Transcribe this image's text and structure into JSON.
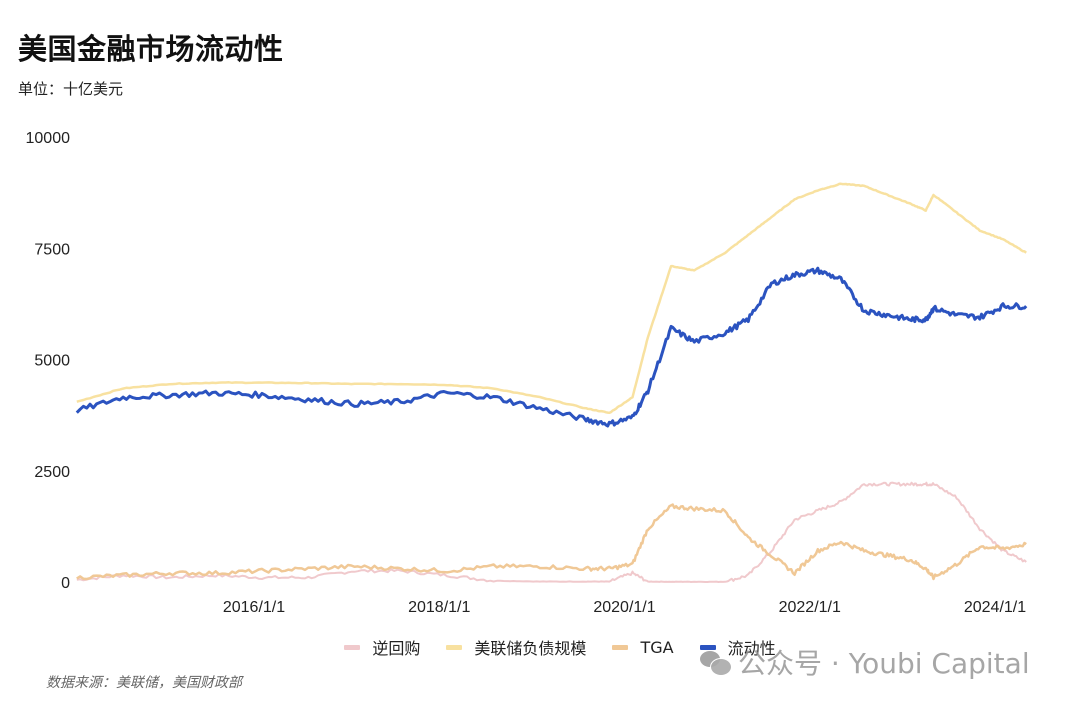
{
  "header": {
    "title": "美国金融市场流动性",
    "subtitle": "单位：十亿美元"
  },
  "legend": [
    {
      "label": "逆回购",
      "color": "#f0c9cc"
    },
    {
      "label": "美联储负债规模",
      "color": "#f8e1a0"
    },
    {
      "label": "TGA",
      "color": "#f0c896"
    },
    {
      "label": "流动性",
      "color": "#2b53c0"
    }
  ],
  "footer": {
    "source": "数据来源：美联储，美国财政部",
    "watermark": "公众号 · Youbi Capital"
  },
  "chart_data": {
    "type": "line",
    "title": "美国金融市场流动性",
    "subtitle": "单位：十亿美元",
    "xlabel": "",
    "ylabel": "",
    "ylim": [
      0,
      10000
    ],
    "yticks": [
      0,
      2500,
      5000,
      7500,
      10000
    ],
    "xticks": [
      "2016/1/1",
      "2018/1/1",
      "2020/1/1",
      "2022/1/1",
      "2024/1/1"
    ],
    "grid": false,
    "legend_position": "bottom",
    "x": [
      "2014-01",
      "2014-07",
      "2015-01",
      "2015-07",
      "2016-01",
      "2016-07",
      "2017-01",
      "2017-07",
      "2018-01",
      "2018-07",
      "2019-01",
      "2019-07",
      "2019-10",
      "2020-01",
      "2020-03",
      "2020-06",
      "2020-09",
      "2021-01",
      "2021-04",
      "2021-07",
      "2021-10",
      "2022-01",
      "2022-04",
      "2022-07",
      "2022-10",
      "2023-01",
      "2023-03",
      "2023-04",
      "2023-07",
      "2023-10",
      "2024-01",
      "2024-04"
    ],
    "series": [
      {
        "name": "逆回购",
        "color": "#f0c9cc",
        "values": [
          50,
          150,
          100,
          150,
          100,
          100,
          250,
          250,
          150,
          30,
          10,
          10,
          10,
          200,
          10,
          5,
          5,
          5,
          150,
          700,
          1400,
          1600,
          1800,
          2200,
          2200,
          2200,
          2200,
          2200,
          1900,
          1200,
          700,
          450
        ]
      },
      {
        "name": "美联储负债规模",
        "color": "#f8e1a0",
        "values": [
          4050,
          4350,
          4450,
          4480,
          4480,
          4470,
          4450,
          4450,
          4430,
          4350,
          4150,
          3900,
          3800,
          4150,
          5500,
          7100,
          7000,
          7400,
          7800,
          8200,
          8600,
          8800,
          8950,
          8900,
          8700,
          8500,
          8350,
          8700,
          8300,
          7900,
          7700,
          7400
        ]
      },
      {
        "name": "TGA",
        "color": "#f0c896",
        "values": [
          100,
          150,
          200,
          200,
          250,
          300,
          350,
          300,
          250,
          350,
          350,
          300,
          300,
          400,
          1200,
          1700,
          1650,
          1600,
          1000,
          600,
          200,
          700,
          900,
          700,
          600,
          500,
          300,
          100,
          400,
          800,
          750,
          850
        ]
      },
      {
        "name": "流动性",
        "color": "#2b53c0",
        "values": [
          3850,
          4150,
          4200,
          4250,
          4200,
          4100,
          4000,
          4050,
          4250,
          4150,
          3900,
          3650,
          3550,
          3700,
          4300,
          5700,
          5400,
          5600,
          5900,
          6700,
          6900,
          7000,
          6800,
          6100,
          6000,
          5900,
          5900,
          6150,
          6000,
          5950,
          6200,
          6200
        ]
      }
    ]
  }
}
